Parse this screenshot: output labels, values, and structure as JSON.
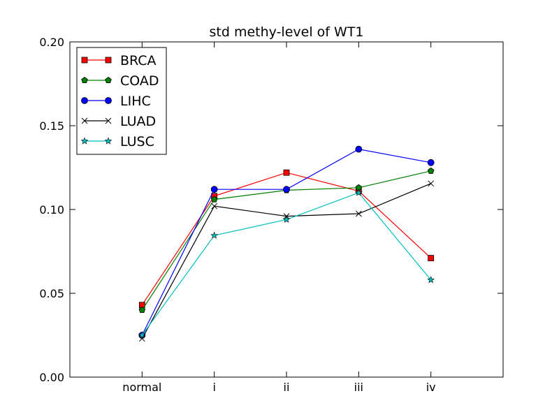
{
  "chart_data": {
    "type": "line",
    "title": "std methy-level of WT1",
    "xlabel": "",
    "ylabel": "",
    "categories": [
      "normal",
      "i",
      "ii",
      "iii",
      "iv"
    ],
    "ylim": [
      0.0,
      0.2
    ],
    "y_ticks": [
      0.0,
      0.05,
      0.1,
      0.15,
      0.2
    ],
    "y_tick_labels": [
      "0.00",
      "0.05",
      "0.10",
      "0.15",
      "0.20"
    ],
    "grid": false,
    "legend_position": "top-left",
    "series": [
      {
        "name": "BRCA",
        "color": "#ff0000",
        "marker": "square",
        "values": [
          0.043,
          0.108,
          0.122,
          0.111,
          0.071
        ]
      },
      {
        "name": "COAD",
        "color": "#008000",
        "marker": "pentagon",
        "values": [
          0.04,
          0.106,
          0.1115,
          0.113,
          0.123
        ]
      },
      {
        "name": "LIHC",
        "color": "#0000ff",
        "marker": "circle",
        "values": [
          0.025,
          0.112,
          0.112,
          0.136,
          0.128
        ]
      },
      {
        "name": "LUAD",
        "color": "#000000",
        "marker": "x",
        "values": [
          0.023,
          0.102,
          0.096,
          0.0975,
          0.1155
        ]
      },
      {
        "name": "LUSC",
        "color": "#00bfbf",
        "marker": "star",
        "values": [
          0.025,
          0.0845,
          0.094,
          0.11,
          0.058
        ]
      }
    ]
  }
}
